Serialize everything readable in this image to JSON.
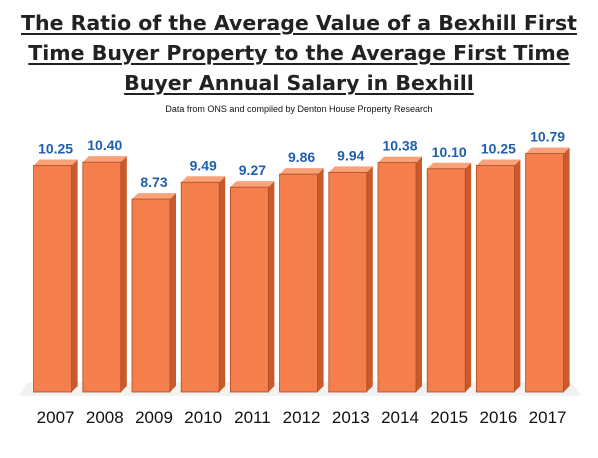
{
  "chart_data": {
    "type": "bar",
    "title": "The Ratio of the Average Value of a Bexhill First Time Buyer Property to the Average First Time Buyer Annual Salary in Bexhill",
    "subtitle": "Data from ONS and compiled by Denton House Property Research",
    "categories": [
      "2007",
      "2008",
      "2009",
      "2010",
      "2011",
      "2012",
      "2013",
      "2014",
      "2015",
      "2016",
      "2017"
    ],
    "values": [
      10.25,
      10.4,
      8.73,
      9.49,
      9.27,
      9.86,
      9.94,
      10.38,
      10.1,
      10.25,
      10.79
    ],
    "data_labels": [
      "10.25",
      "10.40",
      "8.73",
      "9.49",
      "9.27",
      "9.86",
      "9.94",
      "10.38",
      "10.10",
      "10.25",
      "10.79"
    ],
    "ylim": [
      0,
      12
    ],
    "grid": false,
    "legend": "none",
    "colors": {
      "bar_front": "#f47f4d",
      "bar_top": "#f9a27a",
      "bar_side": "#c85a2d",
      "bar_edge": "#b04a22",
      "data_label": "#1f5fae",
      "floor": "#f2f2f2"
    }
  }
}
